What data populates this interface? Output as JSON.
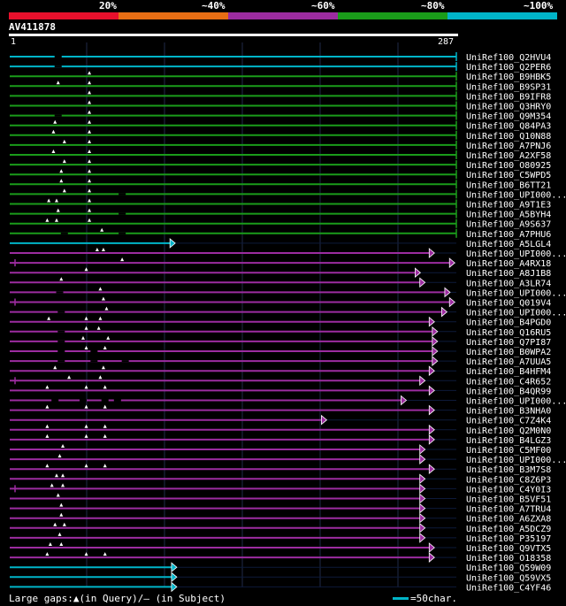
{
  "chart_data": {
    "type": "alignment-overview",
    "query": {
      "name": "AV411878",
      "start": 1,
      "end": 287
    },
    "identity_legend": [
      {
        "label": "20%",
        "color": "#e8102c"
      },
      {
        "label": "~40%",
        "color": "#e86e14"
      },
      {
        "label": "~60%",
        "color": "#9c2ca0"
      },
      {
        "label": "~80%",
        "color": "#1a9c1a"
      },
      {
        "label": "~100%",
        "color": "#00b4c8"
      }
    ],
    "hits": [
      {
        "name": "UniRef100_Q2HVU4",
        "identity": "~100%",
        "q_end": 287,
        "has_arrow": false,
        "tick_left": false,
        "gaps_in_query": [],
        "gaps_in_subject": [
          32
        ]
      },
      {
        "name": "UniRef100_Q2PER6",
        "identity": "~100%",
        "q_end": 287,
        "has_arrow": false,
        "tick_left": false,
        "gaps_in_query": [],
        "gaps_in_subject": [
          32
        ]
      },
      {
        "name": "UniRef100_B9HBK5",
        "identity": "~80%",
        "q_end": 287,
        "has_arrow": false,
        "tick_left": false,
        "gaps_in_query": [
          52
        ],
        "gaps_in_subject": []
      },
      {
        "name": "UniRef100_B9SP31",
        "identity": "~80%",
        "q_end": 287,
        "has_arrow": false,
        "tick_left": false,
        "gaps_in_query": [
          32,
          52
        ],
        "gaps_in_subject": []
      },
      {
        "name": "UniRef100_B9IFR8",
        "identity": "~80%",
        "q_end": 287,
        "has_arrow": false,
        "tick_left": false,
        "gaps_in_query": [
          52
        ],
        "gaps_in_subject": []
      },
      {
        "name": "UniRef100_Q3HRY0",
        "identity": "~80%",
        "q_end": 287,
        "has_arrow": false,
        "tick_left": false,
        "gaps_in_query": [
          52
        ],
        "gaps_in_subject": []
      },
      {
        "name": "UniRef100_Q9M354",
        "identity": "~80%",
        "q_end": 287,
        "has_arrow": false,
        "tick_left": false,
        "gaps_in_query": [
          52
        ],
        "gaps_in_subject": [
          32
        ]
      },
      {
        "name": "UniRef100_Q84PA3",
        "identity": "~80%",
        "q_end": 287,
        "has_arrow": false,
        "tick_left": false,
        "gaps_in_query": [
          30,
          52
        ],
        "gaps_in_subject": []
      },
      {
        "name": "UniRef100_Q10N88",
        "identity": "~80%",
        "q_end": 287,
        "has_arrow": false,
        "tick_left": false,
        "gaps_in_query": [
          29,
          52
        ],
        "gaps_in_subject": []
      },
      {
        "name": "UniRef100_A7PNJ6",
        "identity": "~80%",
        "q_end": 287,
        "has_arrow": false,
        "tick_left": false,
        "gaps_in_query": [
          36,
          52
        ],
        "gaps_in_subject": []
      },
      {
        "name": "UniRef100_A2XF58",
        "identity": "~80%",
        "q_end": 287,
        "has_arrow": false,
        "tick_left": false,
        "gaps_in_query": [
          29,
          52
        ],
        "gaps_in_subject": []
      },
      {
        "name": "UniRef100_O80925",
        "identity": "~80%",
        "q_end": 287,
        "has_arrow": false,
        "tick_left": false,
        "gaps_in_query": [
          36,
          52
        ],
        "gaps_in_subject": []
      },
      {
        "name": "UniRef100_C5WPD5",
        "identity": "~80%",
        "q_end": 287,
        "has_arrow": false,
        "tick_left": false,
        "gaps_in_query": [
          34,
          52
        ],
        "gaps_in_subject": []
      },
      {
        "name": "UniRef100_B6TT21",
        "identity": "~80%",
        "q_end": 287,
        "has_arrow": false,
        "tick_left": false,
        "gaps_in_query": [
          34,
          52
        ],
        "gaps_in_subject": []
      },
      {
        "name": "UniRef100_UPI000...",
        "identity": "~80%",
        "q_end": 287,
        "has_arrow": false,
        "tick_left": false,
        "gaps_in_query": [
          36,
          52
        ],
        "gaps_in_subject": [
          73
        ]
      },
      {
        "name": "UniRef100_A9T1E3",
        "identity": "~80%",
        "q_end": 287,
        "has_arrow": false,
        "tick_left": false,
        "gaps_in_query": [
          26,
          31,
          52
        ],
        "gaps_in_subject": []
      },
      {
        "name": "UniRef100_A5BYH4",
        "identity": "~80%",
        "q_end": 287,
        "has_arrow": false,
        "tick_left": false,
        "gaps_in_query": [
          32,
          52
        ],
        "gaps_in_subject": [
          73
        ]
      },
      {
        "name": "UniRef100_A9S637",
        "identity": "~80%",
        "q_end": 287,
        "has_arrow": false,
        "tick_left": false,
        "gaps_in_query": [
          25,
          31,
          52
        ],
        "gaps_in_subject": []
      },
      {
        "name": "UniRef100_A7PHU6",
        "identity": "~80%",
        "q_end": 287,
        "has_arrow": false,
        "tick_left": false,
        "gaps_in_query": [
          60
        ],
        "gaps_in_subject": [
          36,
          73
        ]
      },
      {
        "name": "UniRef100_A5LGL4",
        "identity": "~100%",
        "q_end": 107,
        "has_arrow": true,
        "tick_left": false,
        "gaps_in_query": [],
        "gaps_in_subject": []
      },
      {
        "name": "UniRef100_UPI000...",
        "identity": "~60%",
        "q_end": 273,
        "has_arrow": true,
        "tick_left": false,
        "gaps_in_query": [
          57,
          61
        ],
        "gaps_in_subject": []
      },
      {
        "name": "UniRef100_A4RX18",
        "identity": "~60%",
        "q_end": 286,
        "has_arrow": true,
        "tick_left": true,
        "gaps_in_query": [
          73
        ],
        "gaps_in_subject": []
      },
      {
        "name": "UniRef100_A8J1B8",
        "identity": "~60%",
        "q_end": 264,
        "has_arrow": true,
        "tick_left": false,
        "gaps_in_query": [
          50
        ],
        "gaps_in_subject": []
      },
      {
        "name": "UniRef100_A3LR74",
        "identity": "~60%",
        "q_end": 267,
        "has_arrow": true,
        "tick_left": false,
        "gaps_in_query": [
          34
        ],
        "gaps_in_subject": []
      },
      {
        "name": "UniRef100_UPI000...",
        "identity": "~60%",
        "q_end": 283,
        "has_arrow": true,
        "tick_left": false,
        "gaps_in_query": [
          59
        ],
        "gaps_in_subject": [
          33
        ]
      },
      {
        "name": "UniRef100_Q019V4",
        "identity": "~60%",
        "q_end": 286,
        "has_arrow": true,
        "tick_left": true,
        "gaps_in_query": [
          61
        ],
        "gaps_in_subject": []
      },
      {
        "name": "UniRef100_UPI000...",
        "identity": "~60%",
        "q_end": 281,
        "has_arrow": true,
        "tick_left": false,
        "gaps_in_query": [
          63
        ],
        "gaps_in_subject": [
          34
        ]
      },
      {
        "name": "UniRef100_B4PGD0",
        "identity": "~60%",
        "q_end": 273,
        "has_arrow": true,
        "tick_left": false,
        "gaps_in_query": [
          26,
          50,
          59
        ],
        "gaps_in_subject": []
      },
      {
        "name": "UniRef100_Q16RU5",
        "identity": "~60%",
        "q_end": 275,
        "has_arrow": true,
        "tick_left": false,
        "gaps_in_query": [
          50,
          58
        ],
        "gaps_in_subject": [
          34
        ]
      },
      {
        "name": "UniRef100_Q7PI87",
        "identity": "~60%",
        "q_end": 275,
        "has_arrow": true,
        "tick_left": false,
        "gaps_in_query": [
          48,
          64
        ],
        "gaps_in_subject": [
          34
        ]
      },
      {
        "name": "UniRef100_B0WPA2",
        "identity": "~60%",
        "q_end": 275,
        "has_arrow": true,
        "tick_left": false,
        "gaps_in_query": [
          50,
          62
        ],
        "gaps_in_subject": [
          34,
          55
        ]
      },
      {
        "name": "UniRef100_A7UUA5",
        "identity": "~60%",
        "q_end": 275,
        "has_arrow": true,
        "tick_left": false,
        "gaps_in_query": [],
        "gaps_in_subject": [
          34,
          55,
          75
        ]
      },
      {
        "name": "UniRef100_B4HFM4",
        "identity": "~60%",
        "q_end": 273,
        "has_arrow": true,
        "tick_left": false,
        "gaps_in_query": [
          30,
          61
        ],
        "gaps_in_subject": []
      },
      {
        "name": "UniRef100_C4R652",
        "identity": "~60%",
        "q_end": 267,
        "has_arrow": true,
        "tick_left": true,
        "gaps_in_query": [
          39,
          59
        ],
        "gaps_in_subject": []
      },
      {
        "name": "UniRef100_B4QR99",
        "identity": "~60%",
        "q_end": 273,
        "has_arrow": true,
        "tick_left": false,
        "gaps_in_query": [
          25,
          50,
          62
        ],
        "gaps_in_subject": []
      },
      {
        "name": "UniRef100_UPI000...",
        "identity": "~60%",
        "q_end": 255,
        "has_arrow": true,
        "tick_left": false,
        "gaps_in_query": [],
        "gaps_in_subject": [
          30,
          48,
          62,
          70
        ]
      },
      {
        "name": "UniRef100_B3NHA0",
        "identity": "~60%",
        "q_end": 273,
        "has_arrow": true,
        "tick_left": false,
        "gaps_in_query": [
          25,
          50,
          62
        ],
        "gaps_in_subject": []
      },
      {
        "name": "UniRef100_C7Z4K4",
        "identity": "~60%",
        "q_end": 204,
        "has_arrow": true,
        "tick_left": false,
        "gaps_in_query": [],
        "gaps_in_subject": []
      },
      {
        "name": "UniRef100_Q2M0N0",
        "identity": "~60%",
        "q_end": 273,
        "has_arrow": true,
        "tick_left": false,
        "gaps_in_query": [
          25,
          50,
          62
        ],
        "gaps_in_subject": []
      },
      {
        "name": "UniRef100_B4LGZ3",
        "identity": "~60%",
        "q_end": 273,
        "has_arrow": true,
        "tick_left": false,
        "gaps_in_query": [
          25,
          50,
          62
        ],
        "gaps_in_subject": []
      },
      {
        "name": "UniRef100_C5MF00",
        "identity": "~60%",
        "q_end": 267,
        "has_arrow": true,
        "tick_left": false,
        "gaps_in_query": [
          35
        ],
        "gaps_in_subject": []
      },
      {
        "name": "UniRef100_UPI000...",
        "identity": "~60%",
        "q_end": 267,
        "has_arrow": true,
        "tick_left": false,
        "gaps_in_query": [
          33
        ],
        "gaps_in_subject": []
      },
      {
        "name": "UniRef100_B3M7S8",
        "identity": "~60%",
        "q_end": 273,
        "has_arrow": true,
        "tick_left": false,
        "gaps_in_query": [
          25,
          50,
          62
        ],
        "gaps_in_subject": []
      },
      {
        "name": "UniRef100_C8Z6P3",
        "identity": "~60%",
        "q_end": 267,
        "has_arrow": true,
        "tick_left": false,
        "gaps_in_query": [
          31,
          35
        ],
        "gaps_in_subject": []
      },
      {
        "name": "UniRef100_C4Y0I3",
        "identity": "~60%",
        "q_end": 267,
        "has_arrow": true,
        "tick_left": true,
        "gaps_in_query": [
          28,
          35
        ],
        "gaps_in_subject": []
      },
      {
        "name": "UniRef100_B5VF51",
        "identity": "~60%",
        "q_end": 267,
        "has_arrow": true,
        "tick_left": false,
        "gaps_in_query": [
          32
        ],
        "gaps_in_subject": []
      },
      {
        "name": "UniRef100_A7TRU4",
        "identity": "~60%",
        "q_end": 267,
        "has_arrow": true,
        "tick_left": false,
        "gaps_in_query": [
          34
        ],
        "gaps_in_subject": []
      },
      {
        "name": "UniRef100_A6ZXA8",
        "identity": "~60%",
        "q_end": 267,
        "has_arrow": true,
        "tick_left": false,
        "gaps_in_query": [
          34
        ],
        "gaps_in_subject": []
      },
      {
        "name": "UniRef100_A5DCZ9",
        "identity": "~60%",
        "q_end": 267,
        "has_arrow": true,
        "tick_left": false,
        "gaps_in_query": [
          30,
          36
        ],
        "gaps_in_subject": []
      },
      {
        "name": "UniRef100_P35197",
        "identity": "~60%",
        "q_end": 267,
        "has_arrow": true,
        "tick_left": false,
        "gaps_in_query": [
          33
        ],
        "gaps_in_subject": []
      },
      {
        "name": "UniRef100_Q9VTX5",
        "identity": "~60%",
        "q_end": 273,
        "has_arrow": true,
        "tick_left": false,
        "gaps_in_query": [
          27,
          34
        ],
        "gaps_in_subject": []
      },
      {
        "name": "UniRef100_O18358",
        "identity": "~60%",
        "q_end": 273,
        "has_arrow": true,
        "tick_left": false,
        "gaps_in_query": [
          25,
          50,
          62
        ],
        "gaps_in_subject": []
      },
      {
        "name": "UniRef100_Q59W09",
        "identity": "~100%",
        "q_end": 108,
        "has_arrow": true,
        "tick_left": false,
        "gaps_in_query": [],
        "gaps_in_subject": []
      },
      {
        "name": "UniRef100_Q59VX5",
        "identity": "~100%",
        "q_end": 108,
        "has_arrow": true,
        "tick_left": false,
        "gaps_in_query": [],
        "gaps_in_subject": []
      },
      {
        "name": "UniRef100_C4YF46",
        "identity": "~100%",
        "q_end": 108,
        "has_arrow": true,
        "tick_left": false,
        "gaps_in_query": [],
        "gaps_in_subject": []
      }
    ]
  },
  "footer": {
    "gaps_text": "Large gaps:▲(in Query)/— (in Subject)",
    "scale_text": "=50char."
  }
}
